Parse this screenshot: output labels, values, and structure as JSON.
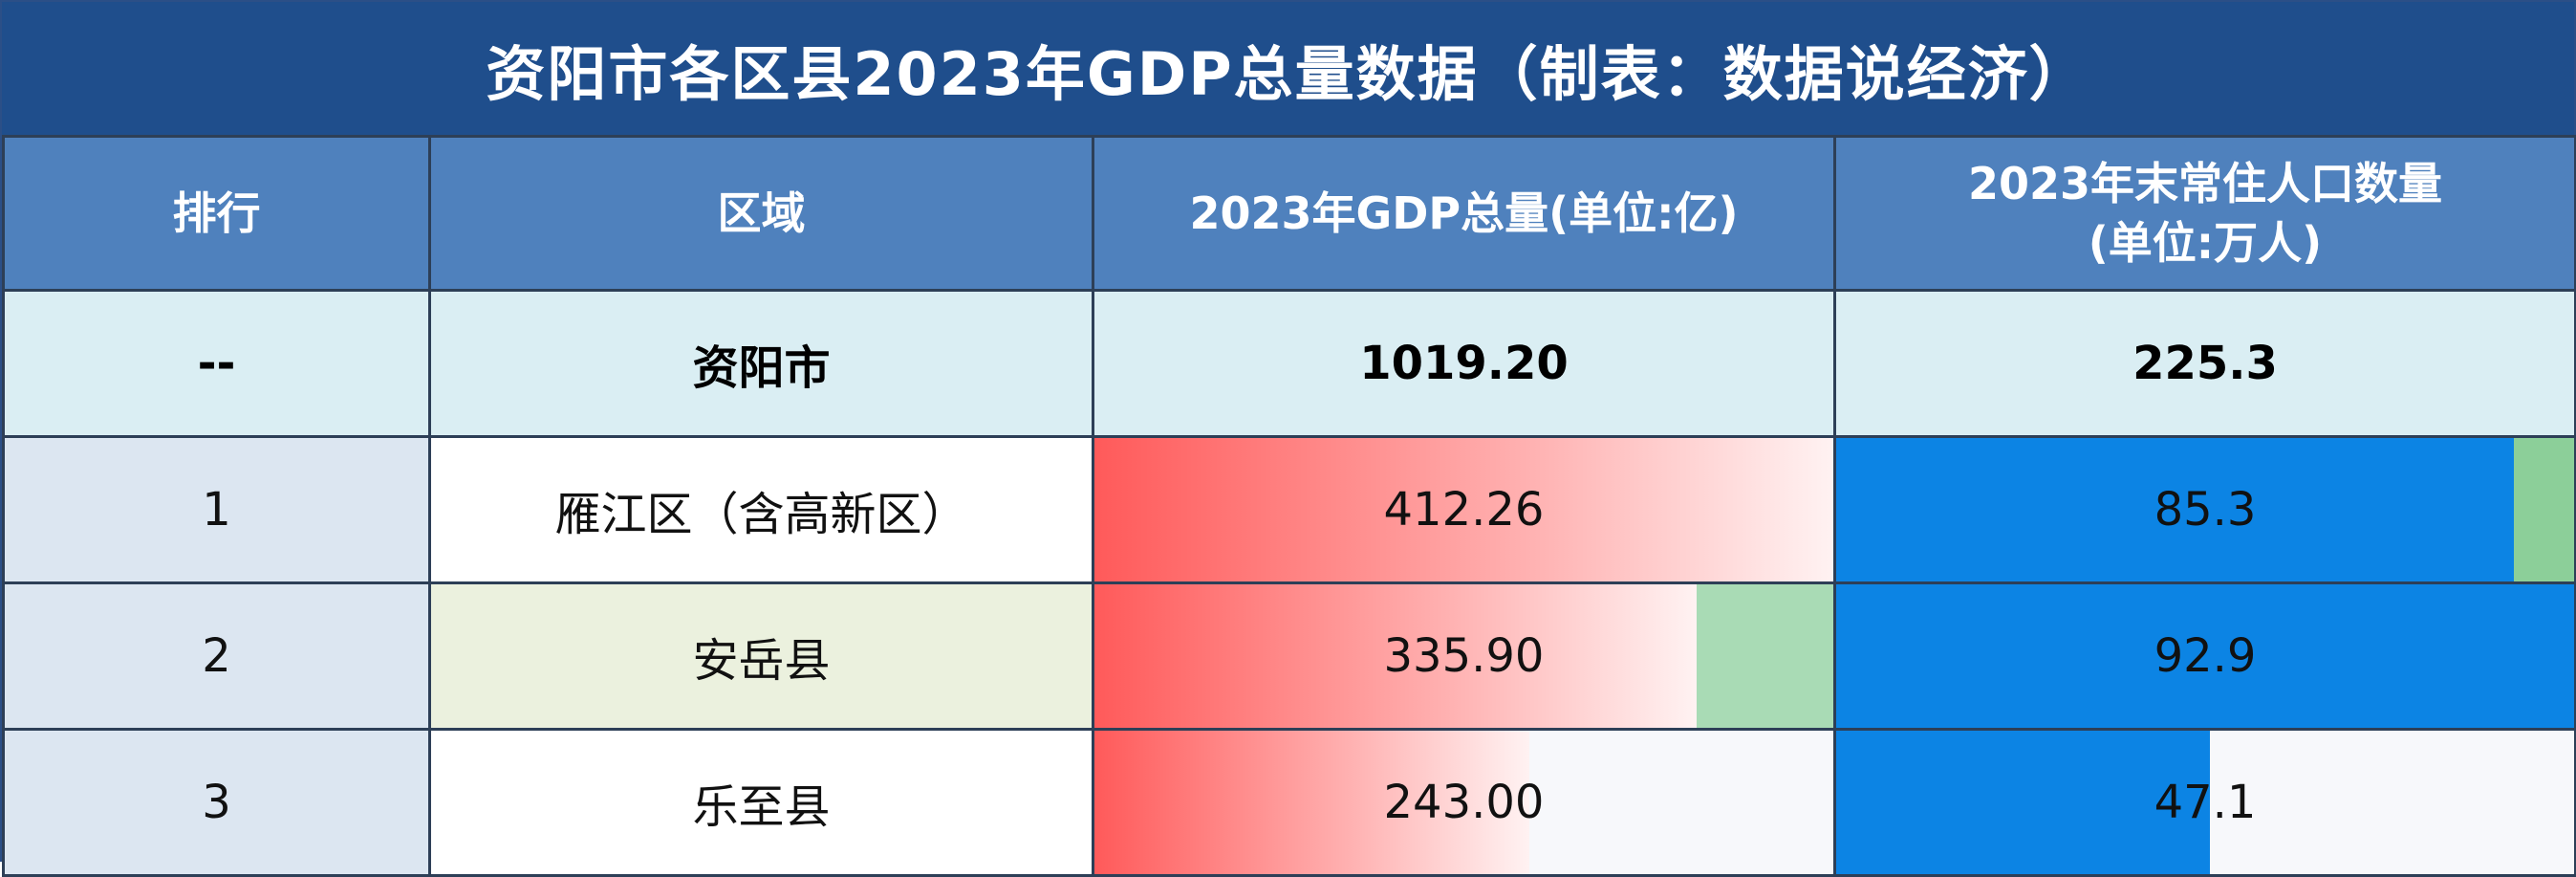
{
  "title": "资阳市各区县2023年GDP总量数据（制表：数据说经济",
  "title_close": "）",
  "headers": {
    "rank": "排行",
    "region": "区域",
    "gdp": "2023年GDP总量(单位:亿)",
    "pop_line1": "2023年末常住人口数量",
    "pop_line2": "(单位:万人)"
  },
  "total": {
    "rank": "--",
    "region": "资阳市",
    "gdp": "1019.20",
    "pop": "225.3"
  },
  "rows": [
    {
      "rank": "1",
      "region": "雁江区（含高新区）",
      "gdp": "412.26",
      "pop": "85.3",
      "gdp_fill": 1.0,
      "pop_fill": 0.918
    },
    {
      "rank": "2",
      "region": "安岳县",
      "gdp": "335.90",
      "pop": "92.9",
      "gdp_fill": 0.815,
      "pop_fill": 1.0
    },
    {
      "rank": "3",
      "region": "乐至县",
      "gdp": "243.00",
      "pop": "47.1",
      "gdp_fill": 0.589,
      "pop_fill": 0.507
    }
  ]
}
